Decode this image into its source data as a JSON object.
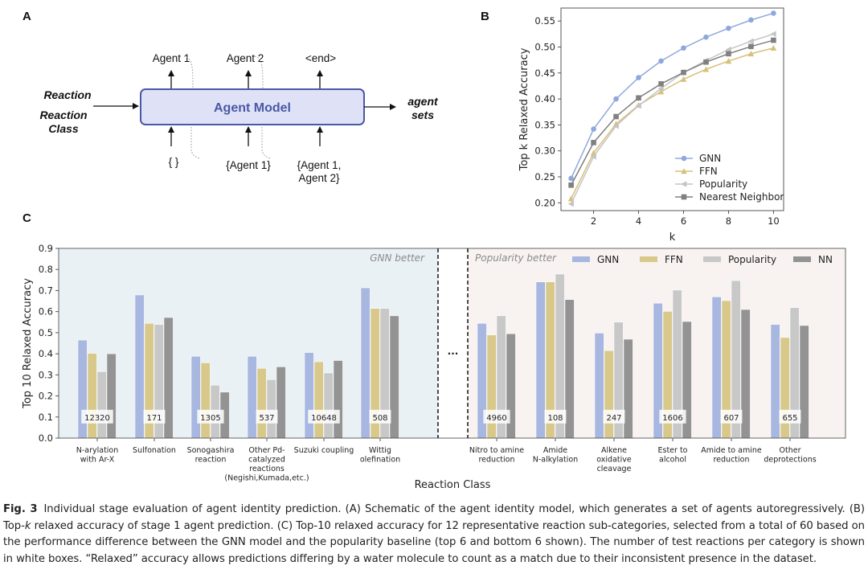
{
  "panel_a": {
    "letter": "A",
    "inputs": [
      "Reaction",
      "Reaction",
      "Class"
    ],
    "model_label": "Agent Model",
    "outputs_top": [
      "Agent 1",
      "Agent 2",
      "<end>"
    ],
    "inputs_bottom": [
      [
        "{ }"
      ],
      [
        "{Agent 1}"
      ],
      [
        "{Agent 1,",
        "Agent 2}"
      ]
    ],
    "output_label": [
      "agent",
      "sets"
    ],
    "colors": {
      "box_fill": "#dfe2f7",
      "box_stroke": "#4a58a6",
      "text": "#4a58a6"
    }
  },
  "caption": {
    "fig": "Fig. 3",
    "text": "Individual stage evaluation of agent identity prediction. (A) Schematic of the agent identity model, which generates a set of agents autoregressively. (B) Top-",
    "k_italic": "k",
    "text2": " relaxed accuracy of stage 1 agent prediction. (C) Top-10 relaxed accuracy for 12 representative reaction sub-categories, selected from a total of 60 based on the performance difference between the GNN model and the popularity baseline (top 6 and bottom 6 shown). The number of test reactions per category is shown in white boxes. “Relaxed” accuracy allows predictions differing by a water molecule to count as a match due to their inconsistent presence in the dataset."
  },
  "chart_data": [
    {
      "panel": "B",
      "type": "line",
      "xlabel": "k",
      "ylabel": "Top k Relaxed Accuracy",
      "x": [
        1,
        2,
        3,
        4,
        5,
        6,
        7,
        8,
        9,
        10
      ],
      "xticks": [
        2,
        4,
        6,
        8,
        10
      ],
      "yticks": [
        0.2,
        0.25,
        0.3,
        0.35,
        0.4,
        0.45,
        0.5,
        0.55
      ],
      "xlim": [
        0.55,
        10.45
      ],
      "ylim": [
        0.185,
        0.575
      ],
      "legend_position": "lower-right",
      "grid": false,
      "series": [
        {
          "name": "GNN",
          "marker": "circle",
          "color": "#8fa8dc",
          "values": [
            0.247,
            0.342,
            0.4,
            0.441,
            0.473,
            0.498,
            0.519,
            0.536,
            0.552,
            0.565
          ]
        },
        {
          "name": "FFN",
          "marker": "triangle-up",
          "color": "#d6c07a",
          "values": [
            0.208,
            0.296,
            0.352,
            0.388,
            0.414,
            0.438,
            0.457,
            0.473,
            0.487,
            0.498
          ]
        },
        {
          "name": "Popularity",
          "marker": "triangle-left",
          "color": "#c4c4c4",
          "values": [
            0.198,
            0.289,
            0.348,
            0.387,
            0.42,
            0.451,
            0.474,
            0.495,
            0.511,
            0.525
          ]
        },
        {
          "name": "Nearest Neighbor",
          "marker": "square",
          "color": "#808080",
          "values": [
            0.234,
            0.316,
            0.366,
            0.402,
            0.429,
            0.451,
            0.471,
            0.487,
            0.501,
            0.513
          ]
        }
      ]
    },
    {
      "panel": "C",
      "type": "bar",
      "xlabel": "Reaction Class",
      "ylabel": "Top 10 Relaxed Accuracy",
      "ylim": [
        0,
        0.9
      ],
      "yticks": [
        0.0,
        0.1,
        0.2,
        0.3,
        0.4,
        0.5,
        0.6,
        0.7,
        0.8,
        0.9
      ],
      "legend_position": "top-right",
      "grid": false,
      "regions": [
        {
          "label": "GNN better",
          "color": "#e9f1f5"
        },
        {
          "label": "Popularity better",
          "color": "#f8f3f1"
        }
      ],
      "ellipsis": "...",
      "categories": [
        {
          "label": [
            "N-arylation",
            "with Ar-X"
          ],
          "count": "12320"
        },
        {
          "label": [
            "Sulfonation"
          ],
          "count": "171"
        },
        {
          "label": [
            "Sonogashira",
            "reaction"
          ],
          "count": "1305"
        },
        {
          "label": [
            "Other Pd-",
            "catalyzed",
            "reactions",
            "(Negishi,Kumada,etc.)"
          ],
          "count": "537"
        },
        {
          "label": [
            "Suzuki coupling"
          ],
          "count": "10648"
        },
        {
          "label": [
            "Wittig",
            "olefination"
          ],
          "count": "508"
        },
        {
          "label": [
            "Nitro to amine",
            "reduction"
          ],
          "count": "4960"
        },
        {
          "label": [
            "Amide",
            "N-alkylation"
          ],
          "count": "108"
        },
        {
          "label": [
            "Alkene",
            "oxidative",
            "cleavage"
          ],
          "count": "247"
        },
        {
          "label": [
            "Ester to",
            "alcohol"
          ],
          "count": "1606"
        },
        {
          "label": [
            "Amide to amine",
            "reduction"
          ],
          "count": "607"
        },
        {
          "label": [
            "Other",
            "deprotections"
          ],
          "count": "655"
        }
      ],
      "series": [
        {
          "name": "GNN",
          "color": "#a7b7e0",
          "values": [
            0.465,
            0.679,
            0.388,
            0.388,
            0.406,
            0.713,
            0.544,
            0.741,
            0.498,
            0.64,
            0.67,
            0.539
          ]
        },
        {
          "name": "FFN",
          "color": "#d8c88a",
          "values": [
            0.402,
            0.544,
            0.357,
            0.331,
            0.362,
            0.615,
            0.489,
            0.741,
            0.415,
            0.601,
            0.652,
            0.477
          ]
        },
        {
          "name": "Popularity",
          "color": "#c8c8c8",
          "values": [
            0.315,
            0.539,
            0.251,
            0.277,
            0.309,
            0.615,
            0.58,
            0.778,
            0.55,
            0.702,
            0.747,
            0.619
          ]
        },
        {
          "name": "NN",
          "color": "#939393",
          "values": [
            0.4,
            0.572,
            0.218,
            0.338,
            0.368,
            0.58,
            0.495,
            0.657,
            0.469,
            0.553,
            0.61,
            0.534
          ]
        }
      ]
    }
  ]
}
